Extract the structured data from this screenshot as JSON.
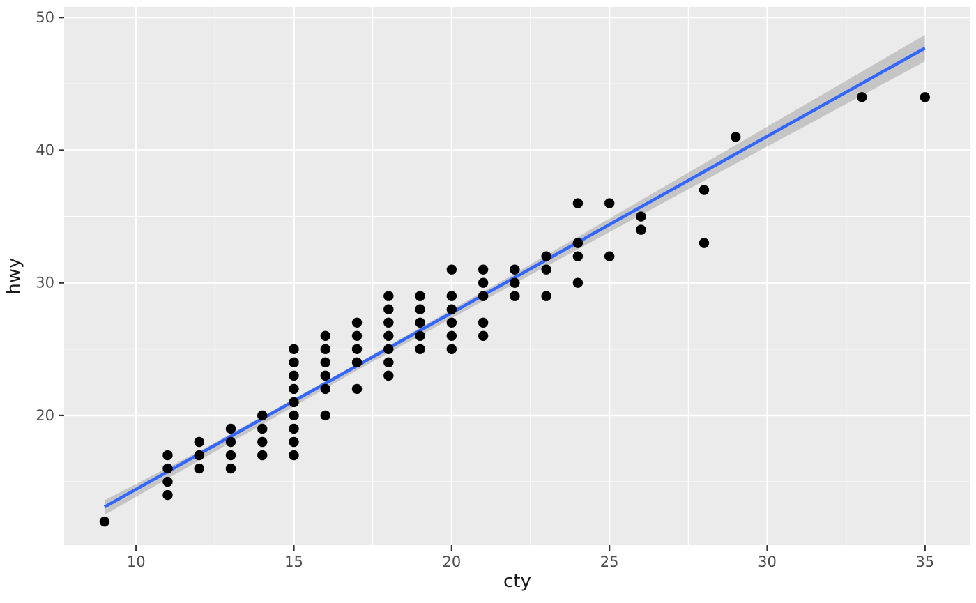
{
  "figure": {
    "x_axis_title": "cty",
    "y_axis_title": "hwy"
  },
  "chart_data": {
    "type": "scatter",
    "title": "",
    "xlabel": "cty",
    "ylabel": "hwy",
    "xlim": [
      7.72,
      36.44
    ],
    "ylim": [
      10.22,
      50.8
    ],
    "x_major_ticks": [
      10,
      15,
      20,
      25,
      30,
      35
    ],
    "x_minor_gridlines": [
      12.5,
      17.5,
      22.5,
      27.5,
      32.5
    ],
    "y_major_ticks": [
      20,
      30,
      40,
      50
    ],
    "y_minor_gridlines": [
      15,
      25,
      35,
      45
    ],
    "grid": true,
    "legend_position": "none",
    "points": [
      [
        9,
        12
      ],
      [
        11,
        14
      ],
      [
        11,
        15
      ],
      [
        11,
        16
      ],
      [
        11,
        17
      ],
      [
        12,
        16
      ],
      [
        12,
        17
      ],
      [
        12,
        18
      ],
      [
        13,
        16
      ],
      [
        13,
        17
      ],
      [
        13,
        18
      ],
      [
        13,
        19
      ],
      [
        14,
        17
      ],
      [
        14,
        18
      ],
      [
        14,
        19
      ],
      [
        14,
        20
      ],
      [
        15,
        17
      ],
      [
        15,
        18
      ],
      [
        15,
        19
      ],
      [
        15,
        20
      ],
      [
        15,
        21
      ],
      [
        15,
        22
      ],
      [
        15,
        23
      ],
      [
        15,
        24
      ],
      [
        15,
        25
      ],
      [
        16,
        20
      ],
      [
        16,
        22
      ],
      [
        16,
        23
      ],
      [
        16,
        24
      ],
      [
        16,
        25
      ],
      [
        16,
        26
      ],
      [
        17,
        22
      ],
      [
        17,
        24
      ],
      [
        17,
        25
      ],
      [
        17,
        26
      ],
      [
        17,
        27
      ],
      [
        18,
        23
      ],
      [
        18,
        24
      ],
      [
        18,
        25
      ],
      [
        18,
        26
      ],
      [
        18,
        27
      ],
      [
        18,
        28
      ],
      [
        18,
        29
      ],
      [
        19,
        25
      ],
      [
        19,
        26
      ],
      [
        19,
        27
      ],
      [
        19,
        28
      ],
      [
        19,
        29
      ],
      [
        20,
        25
      ],
      [
        20,
        26
      ],
      [
        20,
        27
      ],
      [
        20,
        28
      ],
      [
        20,
        29
      ],
      [
        20,
        31
      ],
      [
        21,
        26
      ],
      [
        21,
        27
      ],
      [
        21,
        29
      ],
      [
        21,
        30
      ],
      [
        21,
        31
      ],
      [
        22,
        29
      ],
      [
        22,
        30
      ],
      [
        22,
        31
      ],
      [
        23,
        29
      ],
      [
        23,
        31
      ],
      [
        23,
        32
      ],
      [
        24,
        30
      ],
      [
        24,
        32
      ],
      [
        24,
        33
      ],
      [
        24,
        36
      ],
      [
        25,
        32
      ],
      [
        25,
        36
      ],
      [
        26,
        34
      ],
      [
        26,
        35
      ],
      [
        28,
        33
      ],
      [
        28,
        37
      ],
      [
        29,
        41
      ],
      [
        33,
        44
      ],
      [
        35,
        44
      ]
    ],
    "smooth_line": {
      "method": "lm",
      "endpoints": [
        [
          9,
          13.1
        ],
        [
          35,
          47.7
        ]
      ]
    },
    "confidence_band": [
      {
        "x": 9,
        "lower": 12.5,
        "upper": 13.6
      },
      {
        "x": 12,
        "lower": 16.6,
        "upper": 17.3
      },
      {
        "x": 17,
        "lower": 23.4,
        "upper": 23.9
      },
      {
        "x": 22,
        "lower": 29.95,
        "upper": 30.7
      },
      {
        "x": 28,
        "lower": 37.7,
        "upper": 39.0
      },
      {
        "x": 35,
        "lower": 46.7,
        "upper": 48.7
      }
    ],
    "colors": {
      "point": "#000000",
      "line": "#3366FF",
      "band": "rgba(125,125,125,0.35)",
      "panel_background": "#EBEBEB",
      "gridline": "#FFFFFF",
      "tick_label": "#4D4D4D",
      "tick_mark": "#333333",
      "axis_title": "#1A1A1A",
      "figure_background": "#FFFFFF"
    }
  }
}
